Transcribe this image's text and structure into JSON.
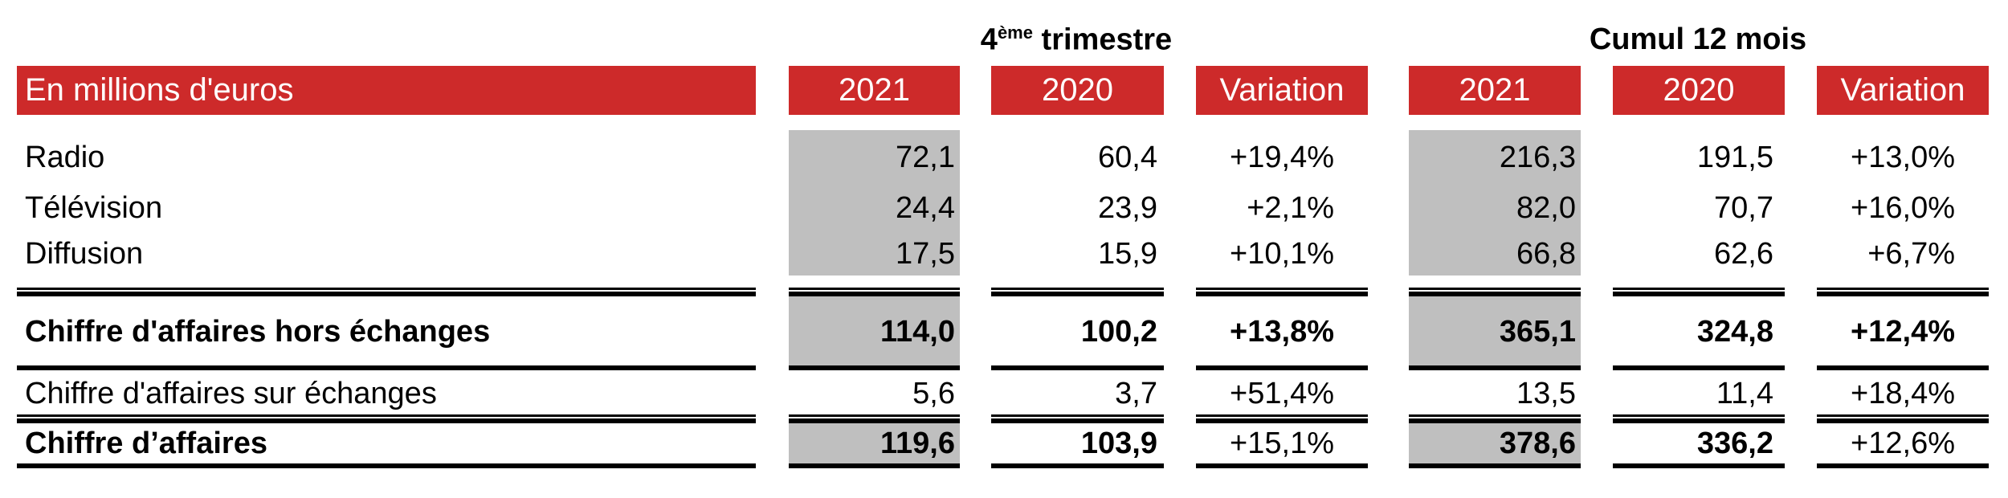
{
  "colors": {
    "header_bg": "#cd2a2a",
    "highlight_bg": "#bfbfbf"
  },
  "groups": [
    {
      "title_prefix": "4",
      "title_sup": "ème",
      "title_suffix": " trimestre"
    },
    {
      "title": "Cumul 12 mois"
    }
  ],
  "header": {
    "label": "En millions d'euros",
    "columns": [
      "2021",
      "2020",
      "Variation",
      "2021",
      "2020",
      "Variation"
    ]
  },
  "rows": [
    {
      "label": "Radio",
      "bold": false,
      "values": [
        "72,1",
        "60,4",
        "+19,4%",
        "216,3",
        "191,5",
        "+13,0%"
      ]
    },
    {
      "label": "Télévision",
      "bold": false,
      "values": [
        "24,4",
        "23,9",
        "+2,1%",
        "82,0",
        "70,7",
        "+16,0%"
      ]
    },
    {
      "label": "Diffusion",
      "bold": false,
      "values": [
        "17,5",
        "15,9",
        "+10,1%",
        "66,8",
        "62,6",
        "+6,7%"
      ]
    },
    {
      "label": "Chiffre d'affaires hors échanges",
      "bold": true,
      "values": [
        "114,0",
        "100,2",
        "+13,8%",
        "365,1",
        "324,8",
        "+12,4%"
      ]
    },
    {
      "label": "Chiffre d'affaires sur échanges",
      "bold": false,
      "values": [
        "5,6",
        "3,7",
        "+51,4%",
        "13,5",
        "11,4",
        "+18,4%"
      ]
    },
    {
      "label": "Chiffre d’affaires",
      "bold": true,
      "bold_values": [
        true,
        true,
        false,
        true,
        true,
        false
      ],
      "values": [
        "119,6",
        "103,9",
        "+15,1%",
        "378,6",
        "336,2",
        "+12,6%"
      ]
    }
  ]
}
